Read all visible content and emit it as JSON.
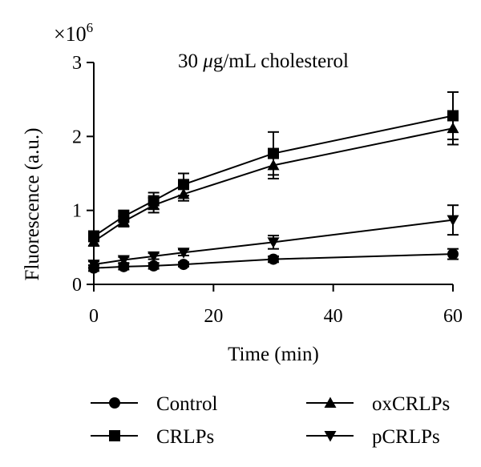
{
  "chart_data": {
    "type": "line",
    "annotation_prefix": "30 ",
    "annotation_mu": "μ",
    "annotation_suffix": "g/mL cholesterol",
    "xlabel": "Time (min)",
    "ylabel": "Fluorescence  (a.u.)",
    "y_multiplier_base": "×10",
    "y_multiplier_exp": "6",
    "xlim": [
      0,
      60
    ],
    "ylim": [
      0,
      3
    ],
    "x_ticks": [
      0,
      20,
      40,
      60
    ],
    "y_ticks": [
      0,
      1,
      2,
      3
    ],
    "x_tick_labels": [
      "0",
      "20",
      "40",
      "60"
    ],
    "y_tick_labels": [
      "0",
      "1",
      "2",
      "3"
    ],
    "grid": false,
    "legend_position": "bottom",
    "x": [
      0,
      5,
      10,
      15,
      30,
      60
    ],
    "series": [
      {
        "name": "Control",
        "marker": "circle",
        "values": [
          0.22,
          0.24,
          0.25,
          0.27,
          0.34,
          0.41
        ],
        "errors": [
          0.04,
          0.04,
          0.04,
          0.03,
          0.04,
          0.07
        ]
      },
      {
        "name": "CRLPs",
        "marker": "square",
        "values": [
          0.65,
          0.92,
          1.13,
          1.35,
          1.77,
          2.28
        ],
        "errors": [
          0.07,
          0.08,
          0.11,
          0.15,
          0.29,
          0.32
        ]
      },
      {
        "name": "oxCRLPs",
        "marker": "triangle-up",
        "values": [
          0.58,
          0.85,
          1.07,
          1.22,
          1.61,
          2.11
        ],
        "errors": [
          0.06,
          0.07,
          0.1,
          0.09,
          0.18,
          0.22
        ]
      },
      {
        "name": "pCRLPs",
        "marker": "triangle-down",
        "values": [
          0.27,
          0.33,
          0.38,
          0.43,
          0.57,
          0.87
        ],
        "errors": [
          0.04,
          0.04,
          0.04,
          0.04,
          0.09,
          0.2
        ]
      }
    ],
    "colors": {
      "line": "#000000",
      "background": "#ffffff"
    }
  }
}
